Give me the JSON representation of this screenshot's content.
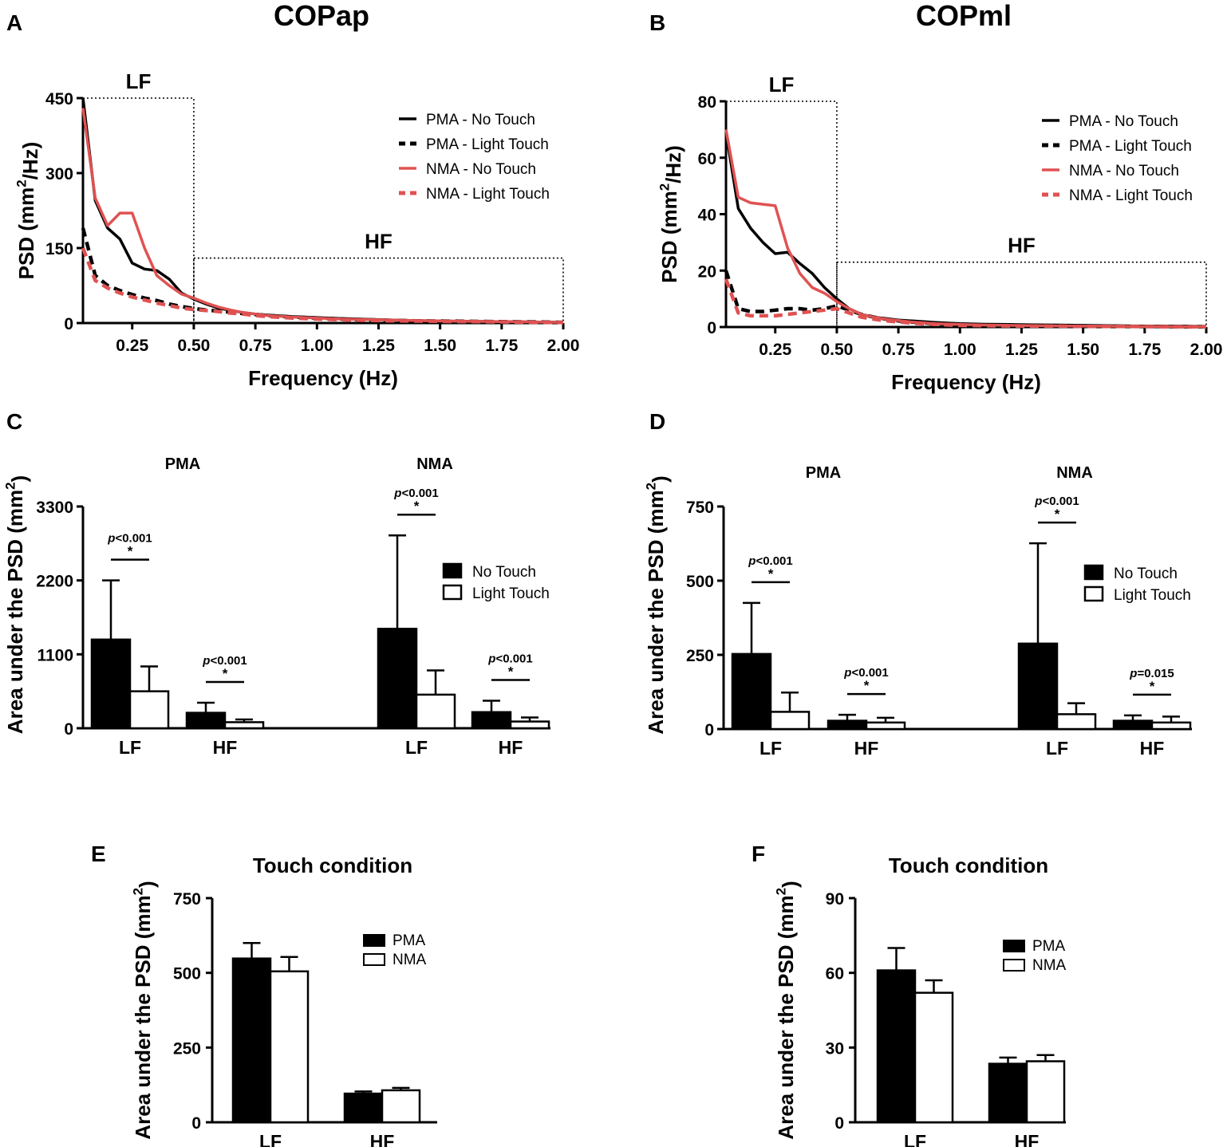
{
  "titles": {
    "left": "COPap",
    "right": "COPml"
  },
  "panel_letters": [
    "A",
    "B",
    "C",
    "D",
    "E",
    "F"
  ],
  "colors": {
    "pma": "#000000",
    "nma": "#e05252",
    "bar_no_touch": "#000000",
    "bar_light_touch": "#ffffff"
  },
  "chart_data": [
    {
      "panel": "A",
      "type": "line",
      "xlabel": "Frequency (Hz)",
      "ylabel": "PSD (mm²/Hz)",
      "xlim": [
        0.05,
        2.0
      ],
      "ylim": [
        0,
        450
      ],
      "xticks": [
        "0.25",
        "0.50",
        "0.75",
        "1.00",
        "1.25",
        "1.50",
        "1.75",
        "2.00"
      ],
      "yticks": [
        "0",
        "150",
        "300",
        "450"
      ],
      "regions": [
        {
          "label": "LF",
          "x": [
            0.05,
            0.5
          ],
          "y": [
            0,
            450
          ]
        },
        {
          "label": "HF",
          "x": [
            0.5,
            2.0
          ],
          "y": [
            0,
            130
          ]
        }
      ],
      "x": [
        0.05,
        0.1,
        0.15,
        0.2,
        0.25,
        0.3,
        0.35,
        0.4,
        0.45,
        0.5,
        0.55,
        0.6,
        0.65,
        0.7,
        0.75,
        0.8,
        0.9,
        1.0,
        1.1,
        1.2,
        1.3,
        1.4,
        1.5,
        1.6,
        1.7,
        1.8,
        1.9,
        2.0
      ],
      "series": [
        {
          "name": "PMA - No Touch",
          "color": "#000000",
          "dashed": false,
          "values": [
            450,
            245,
            190,
            168,
            120,
            108,
            105,
            88,
            60,
            48,
            38,
            30,
            25,
            21,
            18,
            16,
            13,
            11,
            9,
            7.5,
            6,
            5,
            4,
            3.5,
            3,
            2.5,
            2,
            1.5
          ]
        },
        {
          "name": "PMA - Light Touch",
          "color": "#000000",
          "dashed": true,
          "values": [
            190,
            95,
            75,
            65,
            57,
            50,
            45,
            38,
            33,
            29,
            26,
            24,
            22,
            19,
            17,
            15,
            12,
            10,
            8,
            6.5,
            5.5,
            4.5,
            4,
            3.5,
            3,
            2.5,
            2,
            1.5
          ]
        },
        {
          "name": "NMA - No Touch",
          "color": "#e05252",
          "dashed": false,
          "values": [
            430,
            250,
            195,
            220,
            220,
            150,
            95,
            75,
            58,
            50,
            40,
            32,
            26,
            21,
            18,
            15,
            12,
            10,
            8,
            7,
            6,
            5,
            4,
            3.5,
            3,
            2.5,
            2,
            1.5
          ]
        },
        {
          "name": "NMA - Light Touch",
          "color": "#e05252",
          "dashed": true,
          "values": [
            150,
            85,
            70,
            60,
            52,
            46,
            40,
            35,
            30,
            27,
            25,
            23,
            20,
            18,
            15,
            13,
            10,
            8,
            6.5,
            5.5,
            4.5,
            4,
            3.5,
            3,
            2.5,
            2,
            1.5,
            1
          ]
        }
      ]
    },
    {
      "panel": "B",
      "type": "line",
      "xlabel": "Frequency (Hz)",
      "ylabel": "PSD (mm²/Hz)",
      "xlim": [
        0.05,
        2.0
      ],
      "ylim": [
        0,
        80
      ],
      "xticks": [
        "0.25",
        "0.50",
        "0.75",
        "1.00",
        "1.25",
        "1.50",
        "1.75",
        "2.00"
      ],
      "yticks": [
        "0",
        "20",
        "40",
        "60",
        "80"
      ],
      "regions": [
        {
          "label": "LF",
          "x": [
            0.05,
            0.5
          ],
          "y": [
            0,
            80
          ]
        },
        {
          "label": "HF",
          "x": [
            0.5,
            2.0
          ],
          "y": [
            0,
            23
          ]
        }
      ],
      "x": [
        0.05,
        0.1,
        0.15,
        0.2,
        0.25,
        0.3,
        0.35,
        0.4,
        0.45,
        0.5,
        0.55,
        0.6,
        0.65,
        0.7,
        0.75,
        0.8,
        0.9,
        1.0,
        1.1,
        1.2,
        1.3,
        1.4,
        1.5,
        1.6,
        1.7,
        1.8,
        1.9,
        2.0
      ],
      "series": [
        {
          "name": "PMA - No Touch",
          "color": "#000000",
          "dashed": false,
          "values": [
            69,
            42,
            35,
            30,
            26,
            26.5,
            22.5,
            19,
            14,
            10,
            6.5,
            4.5,
            3.5,
            3,
            2.5,
            2.2,
            1.6,
            1.2,
            1,
            0.9,
            0.8,
            0.7,
            0.6,
            0.5,
            0.4,
            0.3,
            0.3,
            0.2
          ]
        },
        {
          "name": "PMA - Light Touch",
          "color": "#000000",
          "dashed": true,
          "values": [
            20,
            6.5,
            5.5,
            5.5,
            6,
            6.5,
            6.5,
            6,
            6.5,
            7.5,
            6,
            4.5,
            3.5,
            2.8,
            2.2,
            1.8,
            1.2,
            0.8,
            0.6,
            0.5,
            0.4,
            0.3,
            0.3,
            0.2,
            0.2,
            0.2,
            0.1,
            0.1
          ]
        },
        {
          "name": "NMA - No Touch",
          "color": "#e05252",
          "dashed": false,
          "values": [
            70,
            46,
            44,
            43.5,
            43,
            28,
            19,
            14,
            12,
            9,
            6.5,
            4.5,
            3.5,
            2.8,
            2.3,
            1.8,
            1.2,
            0.9,
            0.7,
            0.6,
            0.5,
            0.4,
            0.3,
            0.3,
            0.2,
            0.2,
            0.1,
            0.1
          ]
        },
        {
          "name": "NMA - Light Touch",
          "color": "#e05252",
          "dashed": true,
          "values": [
            17,
            5,
            4,
            4,
            4,
            4.5,
            5,
            5.5,
            6,
            6.5,
            5,
            3.5,
            2.8,
            2.2,
            1.8,
            1.4,
            0.9,
            0.6,
            0.5,
            0.4,
            0.3,
            0.3,
            0.2,
            0.2,
            0.2,
            0.1,
            0.1,
            0.1
          ]
        }
      ]
    },
    {
      "panel": "C",
      "type": "bar",
      "ylabel": "Area under the PSD (mm²)",
      "ylim": [
        0,
        3300
      ],
      "yticks": [
        "0",
        "1100",
        "2200",
        "3300"
      ],
      "legend": [
        "No Touch",
        "Light Touch"
      ],
      "groups": [
        {
          "name": "PMA",
          "bands": [
            {
              "label": "LF",
              "no_touch": 1320,
              "no_touch_err": 880,
              "light_touch": 550,
              "light_touch_err": 370,
              "p": "p<0.001"
            },
            {
              "label": "HF",
              "no_touch": 230,
              "no_touch_err": 150,
              "light_touch": 90,
              "light_touch_err": 40,
              "p": "p<0.001"
            }
          ]
        },
        {
          "name": "NMA",
          "bands": [
            {
              "label": "LF",
              "no_touch": 1480,
              "no_touch_err": 1390,
              "light_touch": 500,
              "light_touch_err": 360,
              "p": "p<0.001"
            },
            {
              "label": "HF",
              "no_touch": 240,
              "no_touch_err": 170,
              "light_touch": 100,
              "light_touch_err": 60,
              "p": "p<0.001"
            }
          ]
        }
      ]
    },
    {
      "panel": "D",
      "type": "bar",
      "ylabel": "Area under the PSD (mm²)",
      "ylim": [
        0,
        750
      ],
      "yticks": [
        "0",
        "250",
        "500",
        "750"
      ],
      "legend": [
        "No Touch",
        "Light Touch"
      ],
      "groups": [
        {
          "name": "PMA",
          "bands": [
            {
              "label": "LF",
              "no_touch": 253,
              "no_touch_err": 172,
              "light_touch": 58,
              "light_touch_err": 65,
              "p": "p<0.001"
            },
            {
              "label": "HF",
              "no_touch": 28,
              "no_touch_err": 20,
              "light_touch": 22,
              "light_touch_err": 16,
              "p": "p<0.001"
            }
          ]
        },
        {
          "name": "NMA",
          "bands": [
            {
              "label": "LF",
              "no_touch": 288,
              "no_touch_err": 338,
              "light_touch": 50,
              "light_touch_err": 37,
              "p": "p<0.001"
            },
            {
              "label": "HF",
              "no_touch": 28,
              "no_touch_err": 18,
              "light_touch": 22,
              "light_touch_err": 20,
              "p": "p=0.015"
            }
          ]
        }
      ]
    },
    {
      "panel": "E",
      "type": "bar",
      "title": "Touch condition",
      "ylabel": "Area under the PSD (mm²)",
      "ylim": [
        0,
        750
      ],
      "yticks": [
        "0",
        "250",
        "500",
        "750"
      ],
      "categories": [
        "LF",
        "HF"
      ],
      "series": [
        {
          "name": "PMA",
          "values": [
            548,
            96
          ],
          "errors": [
            52,
            7
          ]
        },
        {
          "name": "NMA",
          "values": [
            505,
            107
          ],
          "errors": [
            48,
            8
          ]
        }
      ]
    },
    {
      "panel": "F",
      "type": "bar",
      "title": "Touch condition",
      "ylabel": "Area under the PSD (mm²)",
      "ylim": [
        0,
        90
      ],
      "yticks": [
        "0",
        "30",
        "60",
        "90"
      ],
      "categories": [
        "LF",
        "HF"
      ],
      "series": [
        {
          "name": "PMA",
          "values": [
            61,
            23.5
          ],
          "errors": [
            9,
            2.5
          ]
        },
        {
          "name": "NMA",
          "values": [
            52,
            24.5
          ],
          "errors": [
            5,
            2.5
          ]
        }
      ]
    }
  ]
}
